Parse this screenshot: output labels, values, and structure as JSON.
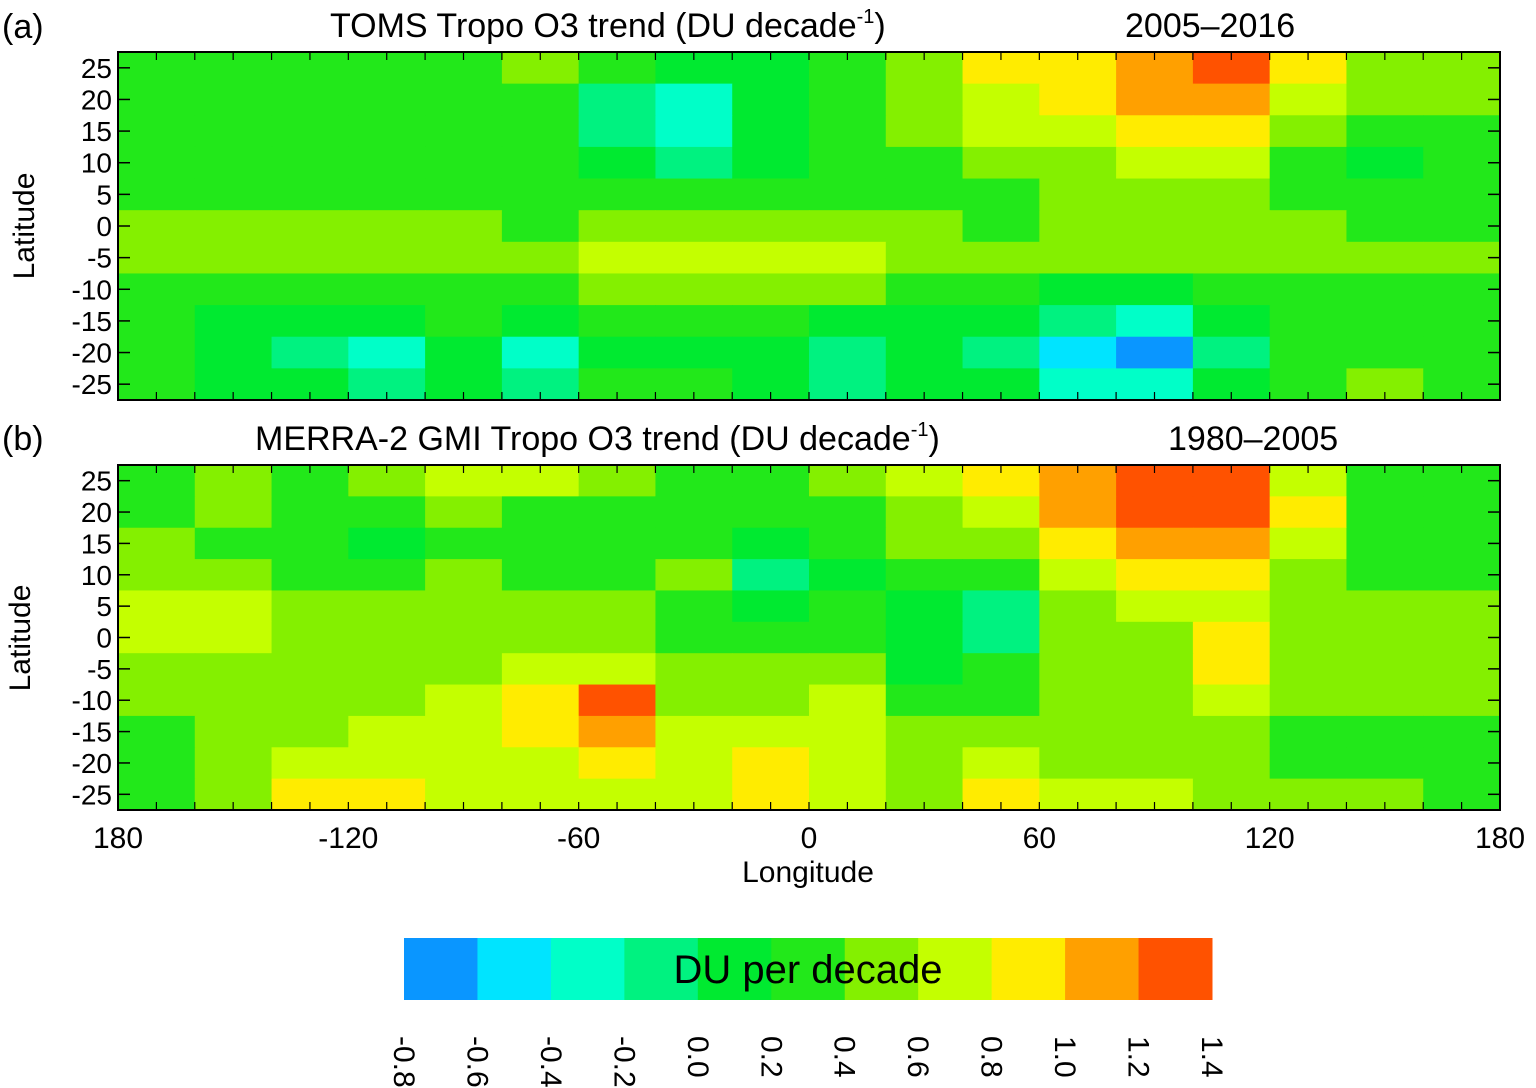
{
  "chart_data": [
    {
      "type": "heatmap",
      "panel_label": "(a)",
      "title": "TOMS Tropo O3 trend (DU decade",
      "title_sup": "-1",
      "title_close": ")",
      "period": "2005–2016",
      "ylabel": "Latitude",
      "xlim": [
        -180,
        180
      ],
      "ylim": [
        -27.5,
        27.5
      ],
      "y_ticks": [
        "25",
        "20",
        "15",
        "10",
        "5",
        "0",
        "-5",
        "-10",
        "-15",
        "-20",
        "-25"
      ],
      "lon_centers": [
        -170,
        -150,
        -130,
        -110,
        -90,
        -70,
        -50,
        -30,
        -10,
        10,
        30,
        50,
        70,
        90,
        110,
        130,
        150,
        170
      ],
      "lat_centers": [
        25,
        20,
        15,
        10,
        5,
        0,
        -5,
        -10,
        -15,
        -20,
        -25
      ],
      "values": [
        [
          0.3,
          0.3,
          0.3,
          0.3,
          0.3,
          0.5,
          0.2,
          0.0,
          0.1,
          0.3,
          0.5,
          0.8,
          0.9,
          1.1,
          1.3,
          0.8,
          0.5,
          0.4
        ],
        [
          0.3,
          0.3,
          0.3,
          0.2,
          0.2,
          0.3,
          -0.1,
          -0.3,
          0.1,
          0.3,
          0.5,
          0.7,
          0.8,
          1.0,
          1.1,
          0.7,
          0.5,
          0.4
        ],
        [
          0.3,
          0.2,
          0.2,
          0.2,
          0.2,
          0.2,
          -0.2,
          -0.4,
          0.0,
          0.2,
          0.4,
          0.6,
          0.7,
          0.9,
          0.9,
          0.5,
          0.3,
          0.3
        ],
        [
          0.2,
          0.2,
          0.2,
          0.2,
          0.2,
          0.2,
          0.0,
          -0.1,
          0.1,
          0.2,
          0.3,
          0.4,
          0.5,
          0.7,
          0.6,
          0.3,
          0.1,
          0.2
        ],
        [
          0.3,
          0.3,
          0.3,
          0.3,
          0.3,
          0.3,
          0.2,
          0.2,
          0.3,
          0.3,
          0.3,
          0.3,
          0.4,
          0.5,
          0.5,
          0.3,
          0.2,
          0.3
        ],
        [
          0.4,
          0.4,
          0.4,
          0.4,
          0.5,
          0.3,
          0.4,
          0.5,
          0.5,
          0.5,
          0.4,
          0.3,
          0.4,
          0.5,
          0.5,
          0.4,
          0.3,
          0.3
        ],
        [
          0.5,
          0.5,
          0.5,
          0.5,
          0.5,
          0.4,
          0.6,
          0.6,
          0.7,
          0.6,
          0.5,
          0.4,
          0.4,
          0.5,
          0.5,
          0.4,
          0.4,
          0.4
        ],
        [
          0.3,
          0.3,
          0.3,
          0.3,
          0.3,
          0.2,
          0.4,
          0.4,
          0.4,
          0.4,
          0.3,
          0.2,
          0.1,
          0.1,
          0.3,
          0.3,
          0.3,
          0.3
        ],
        [
          0.2,
          0.1,
          0.0,
          0.1,
          0.2,
          0.0,
          0.2,
          0.2,
          0.2,
          0.1,
          0.1,
          0.0,
          -0.2,
          -0.3,
          0.0,
          0.2,
          0.3,
          0.3
        ],
        [
          0.2,
          0.1,
          -0.2,
          -0.3,
          0.0,
          -0.3,
          0.1,
          0.1,
          0.0,
          -0.1,
          0.1,
          -0.1,
          -0.5,
          -0.7,
          -0.1,
          0.2,
          0.3,
          0.3
        ],
        [
          0.2,
          0.1,
          0.0,
          -0.2,
          0.0,
          -0.2,
          0.2,
          0.2,
          0.1,
          -0.2,
          0.1,
          0.1,
          -0.3,
          -0.4,
          0.0,
          0.3,
          0.4,
          0.3
        ]
      ]
    },
    {
      "type": "heatmap",
      "panel_label": "(b)",
      "title": "MERRA-2  GMI Tropo O3 trend (DU decade",
      "title_sup": "-1",
      "title_close": ")",
      "period": "1980–2005",
      "ylabel": "Latitude",
      "xlabel": "Longitude",
      "xlim": [
        -180,
        180
      ],
      "ylim": [
        -27.5,
        27.5
      ],
      "x_ticks": [
        "180",
        "-120",
        "-60",
        "0",
        "60",
        "120",
        "180"
      ],
      "y_ticks": [
        "25",
        "20",
        "15",
        "10",
        "5",
        "0",
        "-5",
        "-10",
        "-15",
        "-20",
        "-25"
      ],
      "lon_centers": [
        -170,
        -150,
        -130,
        -110,
        -90,
        -70,
        -50,
        -30,
        -10,
        10,
        30,
        50,
        70,
        90,
        110,
        130,
        150,
        170
      ],
      "lat_centers": [
        25,
        20,
        15,
        10,
        5,
        0,
        -5,
        -10,
        -15,
        -20,
        -25
      ],
      "values": [
        [
          0.3,
          0.4,
          0.3,
          0.5,
          0.7,
          0.7,
          0.4,
          0.2,
          0.3,
          0.4,
          0.6,
          0.9,
          1.0,
          1.3,
          1.3,
          0.7,
          0.3,
          0.3
        ],
        [
          0.3,
          0.4,
          0.2,
          0.2,
          0.4,
          0.3,
          0.3,
          0.2,
          0.2,
          0.3,
          0.5,
          0.7,
          1.1,
          1.3,
          1.3,
          0.9,
          0.3,
          0.3
        ],
        [
          0.4,
          0.3,
          0.3,
          0.1,
          0.3,
          0.3,
          0.3,
          0.3,
          0.1,
          0.2,
          0.4,
          0.5,
          0.8,
          1.1,
          1.0,
          0.6,
          0.3,
          0.3
        ],
        [
          0.4,
          0.4,
          0.3,
          0.2,
          0.4,
          0.3,
          0.3,
          0.4,
          -0.1,
          0.1,
          0.3,
          0.2,
          0.6,
          0.8,
          0.8,
          0.5,
          0.3,
          0.3
        ],
        [
          0.6,
          0.7,
          0.5,
          0.4,
          0.5,
          0.4,
          0.4,
          0.3,
          0.0,
          0.2,
          0.1,
          -0.1,
          0.5,
          0.7,
          0.7,
          0.4,
          0.4,
          0.4
        ],
        [
          0.6,
          0.7,
          0.5,
          0.5,
          0.4,
          0.4,
          0.4,
          0.3,
          0.2,
          0.2,
          0.0,
          -0.1,
          0.4,
          0.5,
          0.8,
          0.4,
          0.4,
          0.4
        ],
        [
          0.4,
          0.5,
          0.5,
          0.5,
          0.5,
          0.6,
          0.7,
          0.5,
          0.4,
          0.5,
          0.1,
          0.2,
          0.4,
          0.5,
          0.9,
          0.5,
          0.4,
          0.4
        ],
        [
          0.4,
          0.4,
          0.4,
          0.5,
          0.6,
          0.9,
          1.2,
          0.5,
          0.5,
          0.7,
          0.3,
          0.3,
          0.4,
          0.4,
          0.6,
          0.5,
          0.4,
          0.4
        ],
        [
          0.3,
          0.4,
          0.5,
          0.6,
          0.6,
          0.9,
          1.1,
          0.6,
          0.6,
          0.7,
          0.4,
          0.4,
          0.4,
          0.5,
          0.4,
          0.3,
          0.3,
          0.3
        ],
        [
          0.3,
          0.5,
          0.7,
          0.7,
          0.6,
          0.7,
          0.8,
          0.6,
          0.8,
          0.7,
          0.5,
          0.6,
          0.5,
          0.5,
          0.4,
          0.3,
          0.3,
          0.3
        ],
        [
          0.3,
          0.5,
          0.8,
          0.8,
          0.7,
          0.6,
          0.7,
          0.6,
          0.8,
          0.7,
          0.5,
          0.8,
          0.6,
          0.6,
          0.4,
          0.4,
          0.4,
          0.3
        ]
      ]
    }
  ],
  "colorbar": {
    "label": "DU per  decade",
    "ticks": [
      "-0.8",
      "-0.6",
      "-0.4",
      "-0.2",
      "0.0",
      "0.2",
      "0.4",
      "0.6",
      "0.8",
      "1.0",
      "1.2",
      "1.4"
    ],
    "range": [
      -0.8,
      1.4
    ],
    "colors": [
      "#0a96ff",
      "#00e4ff",
      "#00ffc8",
      "#00f280",
      "#00ea30",
      "#22e81a",
      "#84f000",
      "#c4ff00",
      "#ffec00",
      "#ffa000",
      "#ff5200"
    ]
  }
}
